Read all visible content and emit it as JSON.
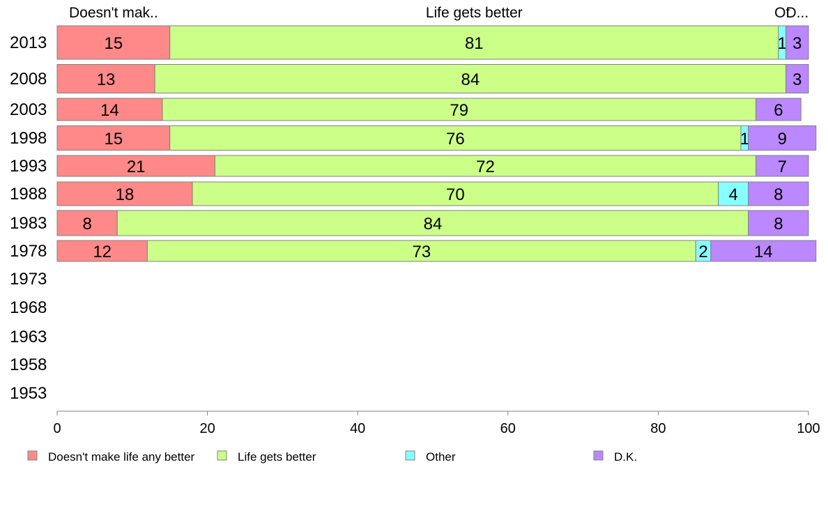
{
  "chart_data": {
    "type": "bar",
    "orientation": "horizontal",
    "stacked": true,
    "categories": [
      "2013",
      "2008",
      "2003",
      "1998",
      "1993",
      "1988",
      "1983",
      "1978",
      "1973",
      "1968",
      "1963",
      "1958",
      "1953"
    ],
    "series": [
      {
        "name": "Doesn't make life any better",
        "short_label": "Doesn't mak..",
        "color": "#ff8888",
        "values": [
          15,
          13,
          14,
          15,
          21,
          18,
          8,
          12,
          null,
          null,
          null,
          null,
          null
        ]
      },
      {
        "name": "Life gets better",
        "short_label": "Life gets better",
        "color": "#ccff88",
        "values": [
          81,
          84,
          79,
          76,
          72,
          70,
          84,
          73,
          null,
          null,
          null,
          null,
          null
        ]
      },
      {
        "name": "Other",
        "short_label": "Ot",
        "color": "#88ffff",
        "values": [
          1,
          null,
          null,
          1,
          null,
          4,
          null,
          2,
          null,
          null,
          null,
          null,
          null
        ]
      },
      {
        "name": "D.K.",
        "short_label": "D...",
        "color": "#bb88ff",
        "values": [
          3,
          3,
          6,
          9,
          7,
          8,
          8,
          14,
          null,
          null,
          null,
          null,
          null
        ]
      }
    ],
    "xlim": [
      0,
      100
    ],
    "x_ticks": [
      "0",
      "20",
      "40",
      "60",
      "80",
      "100"
    ],
    "grid": false,
    "legend_position": "bottom"
  }
}
